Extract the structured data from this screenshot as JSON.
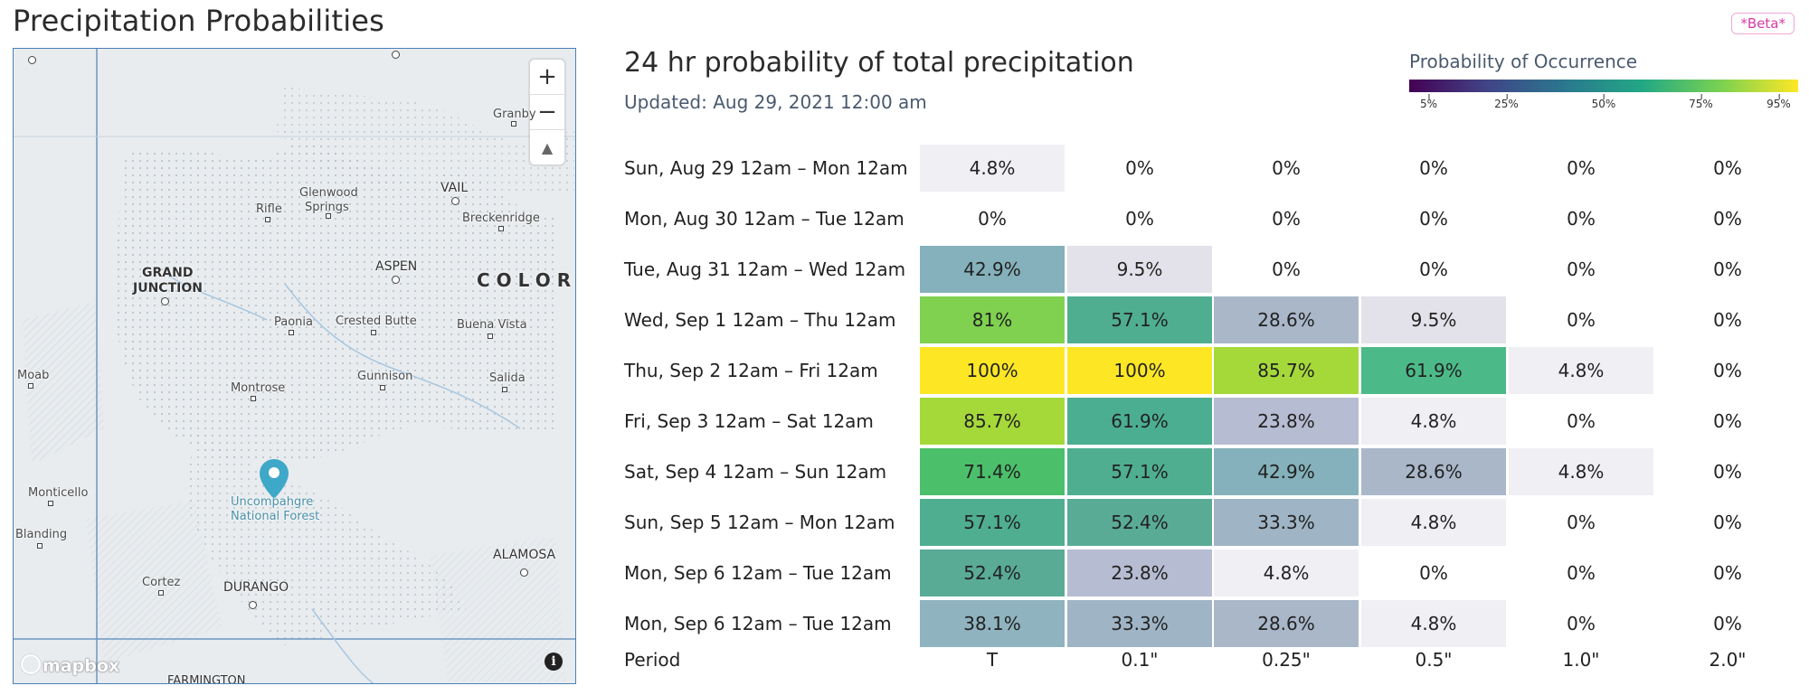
{
  "page": {
    "title": "Precipitation Probabilities",
    "beta_badge": "*Beta*"
  },
  "map": {
    "zoom_in": "+",
    "zoom_out": "−",
    "compass": "▲",
    "attribution_logo": "mapbox",
    "info": "i",
    "labels": {
      "granby": "Granby",
      "glenwood": "Glenwood",
      "springs": "Springs",
      "vail": "VAIL",
      "rifle": "Rifle",
      "breckenridge": "Breckenridge",
      "grand": "GRAND",
      "junction": "JUNCTION",
      "aspen": "ASPEN",
      "colorado": "COLOR",
      "paonia": "Paonia",
      "crested_butte": "Crested Butte",
      "buena_vista": "Buena Vista",
      "moab": "Moab",
      "gunnison": "Gunnison",
      "salida": "Salida",
      "montrose": "Montrose",
      "monticello": "Monticello",
      "uncompahgre": "Uncompahgre",
      "national_forest": "National Forest",
      "blanding": "Blanding",
      "alamosa": "ALAMOSA",
      "cortez": "Cortez",
      "durango": "DURANGO",
      "farmington": "FARMINGTON"
    }
  },
  "panel": {
    "title": "24 hr probability of total precipitation",
    "updated": "Updated: Aug 29, 2021 12:00 am"
  },
  "legend": {
    "title": "Probability of Occurrence",
    "ticks": [
      "5%",
      "25%",
      "50%",
      "75%",
      "95%"
    ]
  },
  "table": {
    "columns": [
      "T",
      "0.1\"",
      "0.25\"",
      "0.5\"",
      "1.0\"",
      "2.0\""
    ],
    "footer_label": "Period",
    "rows": [
      {
        "period": "Sun, Aug 29 12am – Mon 12am",
        "values": [
          "4.8%",
          "0%",
          "0%",
          "0%",
          "0%",
          "0%"
        ]
      },
      {
        "period": "Mon, Aug 30 12am – Tue 12am",
        "values": [
          "0%",
          "0%",
          "0%",
          "0%",
          "0%",
          "0%"
        ]
      },
      {
        "period": "Tue, Aug 31 12am – Wed 12am",
        "values": [
          "42.9%",
          "9.5%",
          "0%",
          "0%",
          "0%",
          "0%"
        ]
      },
      {
        "period": "Wed, Sep 1 12am – Thu 12am",
        "values": [
          "81%",
          "57.1%",
          "28.6%",
          "9.5%",
          "0%",
          "0%"
        ]
      },
      {
        "period": "Thu, Sep 2 12am – Fri 12am",
        "values": [
          "100%",
          "100%",
          "85.7%",
          "61.9%",
          "4.8%",
          "0%"
        ]
      },
      {
        "period": "Fri, Sep 3 12am – Sat 12am",
        "values": [
          "85.7%",
          "61.9%",
          "23.8%",
          "4.8%",
          "0%",
          "0%"
        ]
      },
      {
        "period": "Sat, Sep 4 12am – Sun 12am",
        "values": [
          "71.4%",
          "57.1%",
          "42.9%",
          "28.6%",
          "4.8%",
          "0%"
        ]
      },
      {
        "period": "Sun, Sep 5 12am – Mon 12am",
        "values": [
          "57.1%",
          "52.4%",
          "33.3%",
          "4.8%",
          "0%",
          "0%"
        ]
      },
      {
        "period": "Mon, Sep 6 12am – Tue 12am",
        "values": [
          "52.4%",
          "23.8%",
          "4.8%",
          "0%",
          "0%",
          "0%"
        ]
      },
      {
        "period": "Mon, Sep 6 12am – Tue 12am",
        "values": [
          "38.1%",
          "33.3%",
          "28.6%",
          "4.8%",
          "0%",
          "0%"
        ]
      }
    ],
    "cell_colors": [
      [
        "#f0eff4",
        null,
        null,
        null,
        null,
        null
      ],
      [
        null,
        null,
        null,
        null,
        null,
        null
      ],
      [
        "#84b1bb",
        "#e3e2ea",
        null,
        null,
        null,
        null
      ],
      [
        "#7fd14f",
        "#4fae90",
        "#a9b7c9",
        "#e3e2ea",
        null,
        null
      ],
      [
        "#fde725",
        "#fde725",
        "#a5d93a",
        "#4cba88",
        "#f0eff4",
        null
      ],
      [
        "#a5d93a",
        "#4cae90",
        "#b6bcd2",
        "#f0eff4",
        null,
        null
      ],
      [
        "#4cbf6a",
        "#4fae90",
        "#84b1bb",
        "#a9b7c9",
        "#f0eff4",
        null
      ],
      [
        "#4fae90",
        "#59ab96",
        "#9fb5c5",
        "#f0eff4",
        null,
        null
      ],
      [
        "#59ab96",
        "#b6bcd2",
        "#f0eff4",
        null,
        null,
        null
      ],
      [
        "#8fb3bf",
        "#9fb5c5",
        "#a9b7c9",
        "#f0eff4",
        null,
        null
      ]
    ]
  }
}
